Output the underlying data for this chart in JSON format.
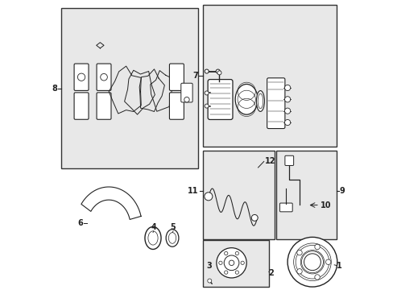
{
  "bg_color": "#ffffff",
  "fig_bg": "#ffffff",
  "box_fill": "#e8e8e8",
  "box_edge": "#333333",
  "line_color": "#222222",
  "label_color": "#111111"
}
